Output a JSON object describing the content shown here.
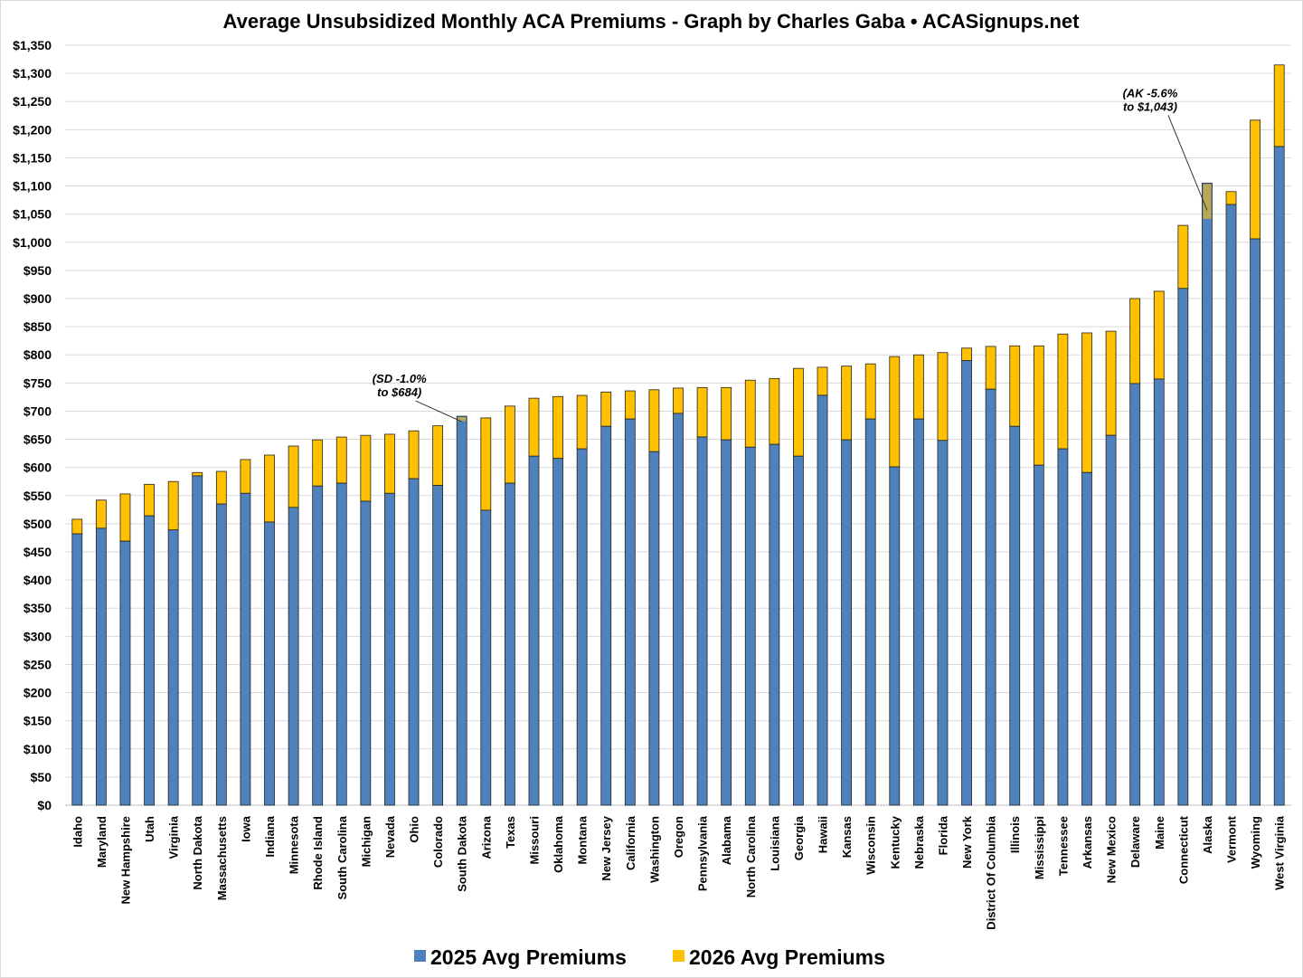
{
  "chart_data": {
    "type": "bar",
    "layout": "overlapping",
    "title": "Average Unsubsidized Monthly ACA Premiums - Graph by Charles Gaba • ACASignups.net",
    "xlabel": "",
    "ylabel": "",
    "ylim": [
      0,
      1350
    ],
    "ytick_step": 50,
    "ytick_format": "$#,###",
    "grid": true,
    "legend_position": "bottom",
    "colors": {
      "2025": "#4F81BD",
      "2026": "#FFC000",
      "decrease_overlap": "#B8A855"
    },
    "categories": [
      "Idaho",
      "Maryland",
      "New Hampshire",
      "Utah",
      "Virginia",
      "North Dakota",
      "Massachusetts",
      "Iowa",
      "Indiana",
      "Minnesota",
      "Rhode Island",
      "South Carolina",
      "Michigan",
      "Nevada",
      "Ohio",
      "Colorado",
      "South Dakota",
      "Arizona",
      "Texas",
      "Missouri",
      "Oklahoma",
      "Montana",
      "New Jersey",
      "California",
      "Washington",
      "Oregon",
      "Pennsylvania",
      "Alabama",
      "North Carolina",
      "Louisiana",
      "Georgia",
      "Hawaii",
      "Kansas",
      "Wisconsin",
      "Kentucky",
      "Nebraska",
      "Florida",
      "New York",
      "District Of Columbia",
      "Illinois",
      "Mississippi",
      "Tennessee",
      "Arkansas",
      "New Mexico",
      "Delaware",
      "Maine",
      "Connecticut",
      "Alaska",
      "Vermont",
      "Wyoming",
      "West Virginia"
    ],
    "series": [
      {
        "name": "2025 Avg Premiums",
        "values": [
          482,
          492,
          469,
          514,
          489,
          585,
          535,
          554,
          503,
          529,
          567,
          572,
          540,
          554,
          580,
          568,
          691,
          524,
          572,
          620,
          616,
          633,
          673,
          686,
          628,
          696,
          654,
          649,
          636,
          641,
          620,
          728,
          649,
          686,
          601,
          686,
          648,
          790,
          739,
          673,
          604,
          633,
          591,
          657,
          749,
          757,
          918,
          1105,
          1067,
          1006,
          1170
        ]
      },
      {
        "name": "2026 Avg Premiums",
        "values": [
          508,
          542,
          553,
          570,
          575,
          591,
          593,
          614,
          622,
          638,
          649,
          654,
          657,
          659,
          665,
          674,
          684,
          688,
          709,
          723,
          726,
          728,
          734,
          736,
          738,
          741,
          742,
          742,
          755,
          758,
          776,
          778,
          780,
          784,
          797,
          800,
          804,
          812,
          815,
          816,
          816,
          837,
          839,
          842,
          900,
          913,
          1030,
          1043,
          1090,
          1217,
          1315
        ]
      }
    ],
    "annotations": [
      {
        "category": "South Dakota",
        "lines": [
          "(SD -1.0%",
          "to $684)"
        ]
      },
      {
        "category": "Alaska",
        "lines": [
          "(AK -5.6%",
          "to $1,043)"
        ]
      }
    ]
  }
}
